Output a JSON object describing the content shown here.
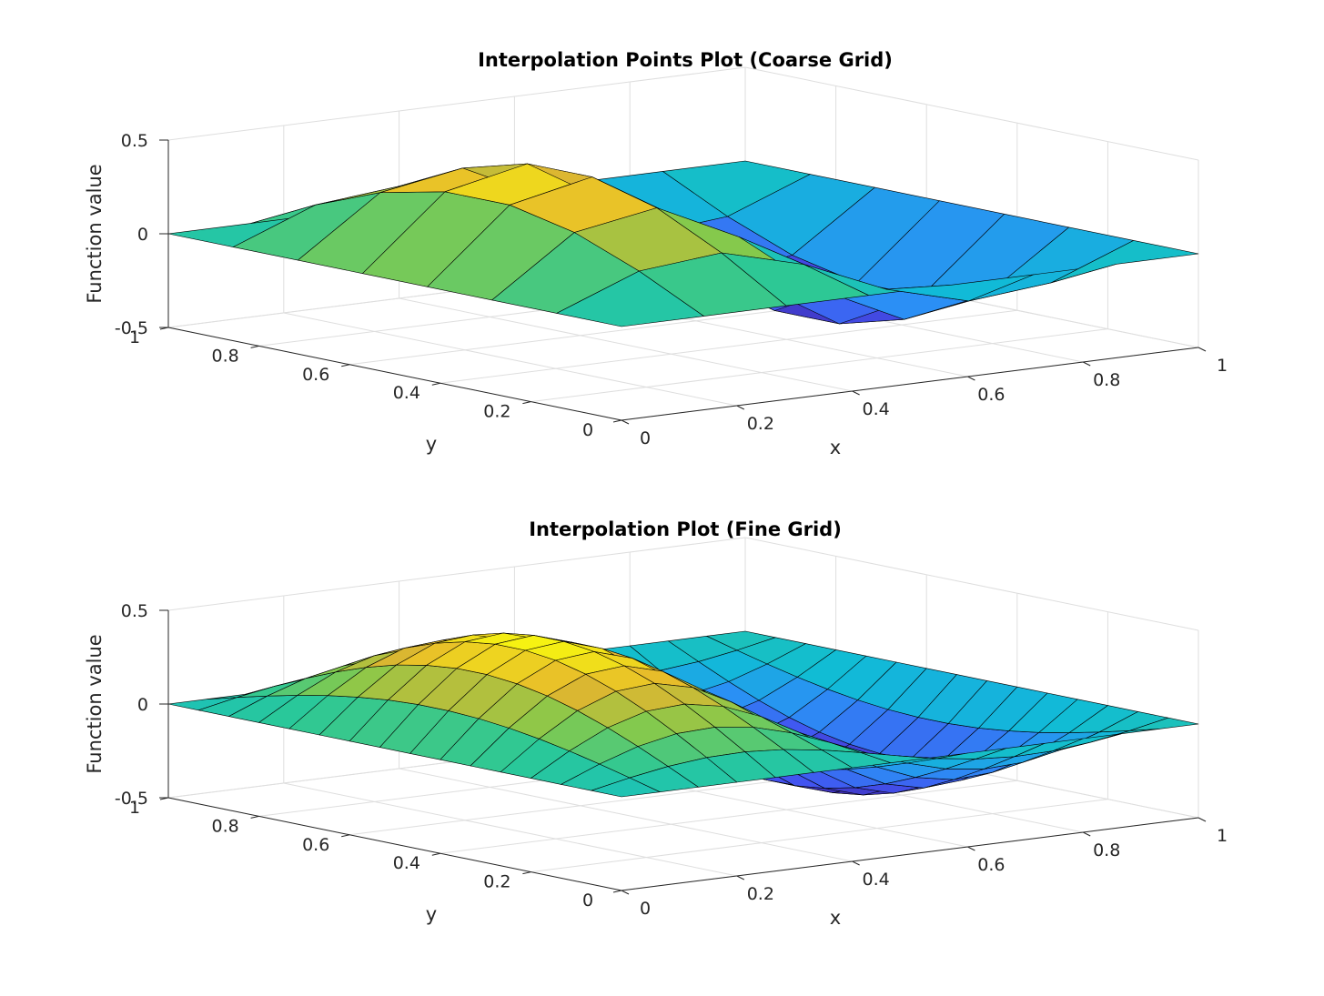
{
  "figure": {
    "colormap": "parula",
    "colormap_stops": [
      "#3e26a8",
      "#4352f0",
      "#2b8ff5",
      "#10bcd6",
      "#2ac898",
      "#85c94c",
      "#e5b52e",
      "#f8fa0e"
    ]
  },
  "chart_data": [
    {
      "type": "surface",
      "title": "Interpolation Points Plot (Coarse Grid)",
      "xlabel": "x",
      "ylabel": "y",
      "zlabel": "Function value",
      "xlim": [
        0,
        1
      ],
      "ylim": [
        0,
        1
      ],
      "zlim": [
        -0.5,
        0.5
      ],
      "xticks": [
        {
          "v": 0,
          "label": "0"
        },
        {
          "v": 0.2,
          "label": "0.2"
        },
        {
          "v": 0.4,
          "label": "0.4"
        },
        {
          "v": 0.6,
          "label": "0.6"
        },
        {
          "v": 0.8,
          "label": "0.8"
        },
        {
          "v": 1,
          "label": "1"
        }
      ],
      "yticks": [
        {
          "v": 0,
          "label": "0"
        },
        {
          "v": 0.2,
          "label": "0.2"
        },
        {
          "v": 0.4,
          "label": "0.4"
        },
        {
          "v": 0.6,
          "label": "0.6"
        },
        {
          "v": 0.8,
          "label": "0.8"
        },
        {
          "v": 1,
          "label": "1"
        }
      ],
      "zticks": [
        {
          "v": -0.5,
          "label": "-0.5"
        },
        {
          "v": 0,
          "label": "0"
        },
        {
          "v": 0.5,
          "label": "0.5"
        }
      ],
      "grid": true,
      "function": "0.5*sin(2*pi*x)*sin(pi*y)",
      "x": [
        0,
        0.1429,
        0.2857,
        0.4286,
        0.5714,
        0.7143,
        0.8571,
        1
      ],
      "y": [
        0,
        0.1429,
        0.2857,
        0.4286,
        0.5714,
        0.7143,
        0.8571,
        1
      ]
    },
    {
      "type": "surface",
      "title": "Interpolation Plot (Fine Grid)",
      "xlabel": "x",
      "ylabel": "y",
      "zlabel": "Function value",
      "xlim": [
        0,
        1
      ],
      "ylim": [
        0,
        1
      ],
      "zlim": [
        -0.5,
        0.5
      ],
      "xticks": [
        {
          "v": 0,
          "label": "0"
        },
        {
          "v": 0.2,
          "label": "0.2"
        },
        {
          "v": 0.4,
          "label": "0.4"
        },
        {
          "v": 0.6,
          "label": "0.6"
        },
        {
          "v": 0.8,
          "label": "0.8"
        },
        {
          "v": 1,
          "label": "1"
        }
      ],
      "yticks": [
        {
          "v": 0,
          "label": "0"
        },
        {
          "v": 0.2,
          "label": "0.2"
        },
        {
          "v": 0.4,
          "label": "0.4"
        },
        {
          "v": 0.6,
          "label": "0.6"
        },
        {
          "v": 0.8,
          "label": "0.8"
        },
        {
          "v": 1,
          "label": "1"
        }
      ],
      "zticks": [
        {
          "v": -0.5,
          "label": "-0.5"
        },
        {
          "v": 0,
          "label": "0"
        },
        {
          "v": 0.5,
          "label": "0.5"
        }
      ],
      "grid": true,
      "function": "0.5*sin(2*pi*x)*sin(pi*y)",
      "x": [
        0,
        0.0667,
        0.1333,
        0.2,
        0.2667,
        0.3333,
        0.4,
        0.4667,
        0.5333,
        0.6,
        0.6667,
        0.7333,
        0.8,
        0.8667,
        0.9333,
        1
      ],
      "y": [
        0,
        0.0667,
        0.1333,
        0.2,
        0.2667,
        0.3333,
        0.4,
        0.4667,
        0.5333,
        0.6,
        0.6667,
        0.7333,
        0.8,
        0.8667,
        0.9333,
        1
      ]
    }
  ]
}
